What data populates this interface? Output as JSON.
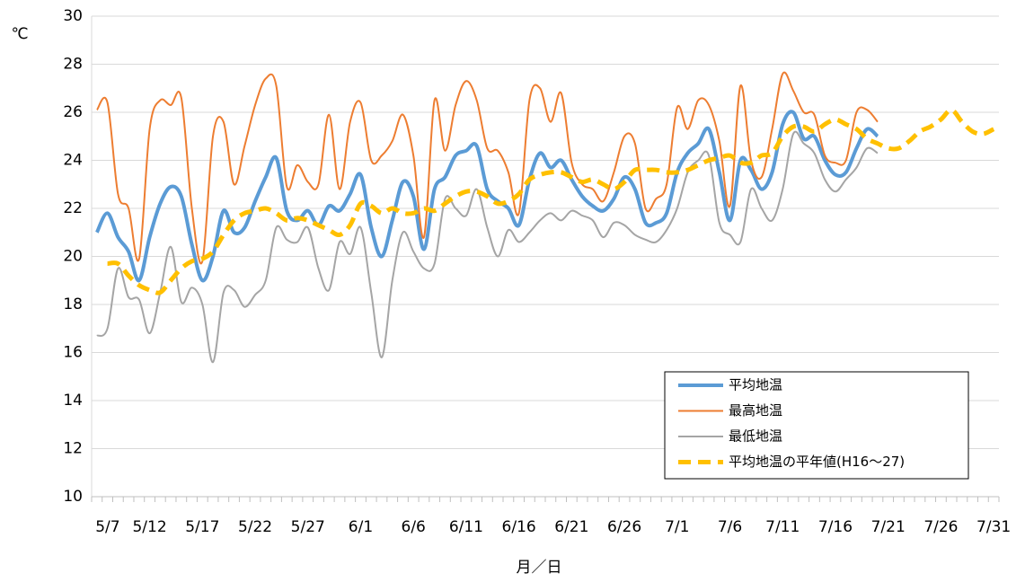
{
  "chart_data": {
    "type": "line",
    "y_unit": "℃",
    "x_label": "月／日",
    "categories": [
      "5/7",
      null,
      null,
      null,
      null,
      "5/12",
      null,
      null,
      null,
      null,
      "5/17",
      null,
      null,
      null,
      null,
      "5/22",
      null,
      null,
      null,
      null,
      "5/27",
      null,
      null,
      null,
      null,
      "6/1",
      null,
      null,
      null,
      null,
      "6/6",
      null,
      null,
      null,
      null,
      "6/11",
      null,
      null,
      null,
      null,
      "6/16",
      null,
      null,
      null,
      null,
      "6/21",
      null,
      null,
      null,
      null,
      "6/26",
      null,
      null,
      null,
      null,
      "7/1",
      null,
      null,
      null,
      null,
      "7/6",
      null,
      null,
      null,
      null,
      "7/11",
      null,
      null,
      null,
      null,
      "7/16",
      null,
      null,
      null,
      null,
      "7/21",
      null,
      null,
      null,
      null,
      "7/26",
      null,
      null,
      null,
      null,
      "7/31"
    ],
    "series": [
      {
        "name": "平均地温",
        "color": "#5b9bd5",
        "width": 4,
        "values": [
          21.0,
          21.8,
          20.8,
          20.2,
          19.0,
          20.8,
          22.2,
          22.9,
          22.5,
          20.5,
          19.0,
          20.0,
          21.9,
          21.0,
          21.2,
          22.3,
          23.3,
          24.1,
          21.9,
          21.5,
          21.9,
          21.3,
          22.1,
          21.9,
          22.6,
          23.4,
          21.2,
          20.0,
          21.5,
          23.1,
          22.5,
          20.3,
          22.8,
          23.3,
          24.2,
          24.4,
          24.6,
          22.8,
          22.3,
          22.0,
          21.3,
          23.2,
          24.3,
          23.7,
          24.0,
          23.2,
          22.5,
          22.1,
          21.9,
          22.4,
          23.3,
          22.8,
          21.4,
          21.4,
          21.8,
          23.5,
          24.3,
          24.7,
          25.3,
          23.5,
          21.5,
          24.0,
          23.6,
          22.8,
          23.5,
          25.5,
          26.0,
          24.9,
          25.0,
          24.0,
          23.4,
          23.5,
          24.5,
          25.3,
          25.0,
          null,
          null,
          null,
          null,
          null,
          null,
          null,
          null,
          null,
          null,
          null
        ]
      },
      {
        "name": "最高地温",
        "color": "#ed7d31",
        "width": 2,
        "values": [
          26.1,
          26.4,
          22.6,
          22.0,
          19.9,
          25.3,
          26.5,
          26.3,
          26.6,
          22.0,
          19.8,
          25.0,
          25.6,
          23.0,
          24.6,
          26.3,
          27.4,
          27.1,
          22.9,
          23.8,
          23.1,
          23.0,
          25.9,
          22.8,
          25.6,
          26.4,
          24.0,
          24.2,
          24.8,
          25.9,
          24.2,
          20.8,
          26.5,
          24.4,
          26.3,
          27.3,
          26.5,
          24.5,
          24.4,
          23.5,
          21.8,
          26.5,
          27.0,
          25.6,
          26.8,
          23.9,
          23.0,
          22.8,
          22.3,
          23.5,
          25.0,
          24.7,
          22.0,
          22.4,
          23.0,
          26.2,
          25.3,
          26.5,
          26.3,
          24.8,
          22.1,
          27.1,
          24.0,
          23.3,
          25.3,
          27.6,
          26.9,
          26.0,
          25.9,
          24.2,
          23.9,
          24.0,
          26.0,
          26.1,
          25.6,
          null,
          null,
          null,
          null,
          null,
          null,
          null,
          null,
          null,
          null,
          null
        ]
      },
      {
        "name": "最低地温",
        "color": "#a5a5a5",
        "width": 2,
        "values": [
          16.7,
          17.0,
          19.5,
          18.3,
          18.2,
          16.8,
          18.5,
          20.4,
          18.1,
          18.7,
          18.0,
          15.6,
          18.5,
          18.6,
          17.9,
          18.4,
          19.0,
          21.2,
          20.7,
          20.6,
          21.2,
          19.5,
          18.6,
          20.6,
          20.1,
          21.2,
          18.5,
          15.8,
          19.0,
          21.0,
          20.2,
          19.5,
          19.7,
          22.4,
          22.0,
          21.7,
          22.8,
          21.2,
          20.0,
          21.1,
          20.6,
          21.0,
          21.5,
          21.8,
          21.5,
          21.9,
          21.7,
          21.5,
          20.8,
          21.4,
          21.3,
          20.9,
          20.7,
          20.6,
          21.1,
          22.0,
          23.5,
          24.0,
          24.2,
          21.4,
          20.9,
          20.6,
          22.8,
          22.0,
          21.5,
          22.8,
          25.1,
          24.7,
          24.3,
          23.2,
          22.7,
          23.2,
          23.7,
          24.5,
          24.3,
          null,
          null,
          null,
          null,
          null,
          null,
          null,
          null,
          null,
          null,
          null
        ]
      },
      {
        "name": "平均地温の平年値(H16～27)",
        "color": "#ffc000",
        "width": 5,
        "dashed": true,
        "values": [
          null,
          19.7,
          19.7,
          19.2,
          18.8,
          18.6,
          18.5,
          19.0,
          19.5,
          19.8,
          19.9,
          20.2,
          20.9,
          21.5,
          21.8,
          21.9,
          22.0,
          21.8,
          21.5,
          21.6,
          21.5,
          21.3,
          21.1,
          20.9,
          21.3,
          22.2,
          22.1,
          21.8,
          22.0,
          21.8,
          21.8,
          22.0,
          21.9,
          22.2,
          22.5,
          22.7,
          22.7,
          22.5,
          22.2,
          22.3,
          22.6,
          23.2,
          23.4,
          23.5,
          23.5,
          23.3,
          23.1,
          23.2,
          23.0,
          22.8,
          23.1,
          23.6,
          23.6,
          23.6,
          23.5,
          23.5,
          23.6,
          23.8,
          24.0,
          24.1,
          24.2,
          23.9,
          23.9,
          24.2,
          24.3,
          25.0,
          25.4,
          25.4,
          25.2,
          25.5,
          25.7,
          25.5,
          25.3,
          24.9,
          24.7,
          24.5,
          24.5,
          24.8,
          25.2,
          25.4,
          25.7,
          26.1,
          25.6,
          25.2,
          25.1,
          25.3
        ]
      }
    ],
    "ylim": [
      10,
      30
    ],
    "yticks": [
      10,
      12,
      14,
      16,
      18,
      20,
      22,
      24,
      26,
      28,
      30
    ],
    "grid": true,
    "legend": "lower right"
  }
}
